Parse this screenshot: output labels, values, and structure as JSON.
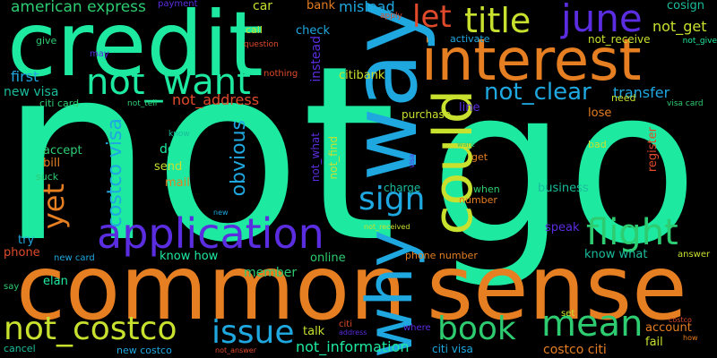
{
  "palette": {
    "mint": "#1de9a0",
    "orange": "#e67e22",
    "sky": "#1fa8e0",
    "lime": "#c8e02e",
    "violet": "#5b2de0",
    "red": "#e04a2b",
    "green": "#2ecc71",
    "teal": "#1abc9c"
  },
  "words": [
    {
      "text": "not",
      "color": "#1de9a0"
    },
    {
      "text": "go",
      "color": "#1de9a0"
    },
    {
      "text": "common",
      "color": "#e67e22"
    },
    {
      "text": "sense",
      "color": "#e67e22"
    },
    {
      "text": "credit",
      "color": "#1de9a0"
    },
    {
      "text": "interest",
      "color": "#e67e22"
    },
    {
      "text": "way",
      "color": "#1fa8e0"
    },
    {
      "text": "why",
      "color": "#1fa8e0"
    },
    {
      "text": "could",
      "color": "#c8e02e"
    },
    {
      "text": "application",
      "color": "#5b2de0"
    },
    {
      "text": "not_want",
      "color": "#1de9a0"
    },
    {
      "text": "june",
      "color": "#5b2de0"
    },
    {
      "text": "title",
      "color": "#c8e02e"
    },
    {
      "text": "let",
      "color": "#e04a2b"
    },
    {
      "text": "flight",
      "color": "#2ecc71"
    },
    {
      "text": "mean",
      "color": "#2ecc71"
    },
    {
      "text": "not_costco",
      "color": "#c8e02e"
    },
    {
      "text": "issue",
      "color": "#1fa8e0"
    },
    {
      "text": "book",
      "color": "#2ecc71"
    },
    {
      "text": "sign",
      "color": "#1fa8e0"
    },
    {
      "text": "not_clear",
      "color": "#1fa8e0"
    },
    {
      "text": "yet",
      "color": "#e67e22"
    },
    {
      "text": "costco visa",
      "color": "#1fa8e0"
    },
    {
      "text": "obvious",
      "color": "#1fa8e0"
    },
    {
      "text": "american express",
      "color": "#2ecc71"
    },
    {
      "text": "not_get",
      "color": "#c8e02e"
    },
    {
      "text": "cosign",
      "color": "#1abc9c"
    },
    {
      "text": "transfer",
      "color": "#1fa8e0"
    },
    {
      "text": "not_address",
      "color": "#e04a2b"
    },
    {
      "text": "first",
      "color": "#1fa8e0"
    },
    {
      "text": "new visa",
      "color": "#1abc9c"
    },
    {
      "text": "citi card",
      "color": "#2ecc71"
    },
    {
      "text": "not_receive",
      "color": "#c8e02e"
    },
    {
      "text": "citibank",
      "color": "#c8e02e"
    },
    {
      "text": "mislead",
      "color": "#1fa8e0"
    },
    {
      "text": "bank",
      "color": "#e67e22"
    },
    {
      "text": "car",
      "color": "#c8e02e"
    },
    {
      "text": "payment",
      "color": "#5b2de0"
    },
    {
      "text": "apply",
      "color": "#e04a2b"
    },
    {
      "text": "check",
      "color": "#1fa8e0"
    },
    {
      "text": "instead",
      "color": "#5b2de0"
    },
    {
      "text": "call",
      "color": "#c8e02e"
    },
    {
      "text": "question",
      "color": "#e04a2b"
    },
    {
      "text": "nothing",
      "color": "#e04a2b"
    },
    {
      "text": "give",
      "color": "#2ecc71"
    },
    {
      "text": "may",
      "color": "#5b2de0"
    },
    {
      "text": "activate",
      "color": "#1fa8e0"
    },
    {
      "text": "need",
      "color": "#c8e02e"
    },
    {
      "text": "visa card",
      "color": "#2ecc71"
    },
    {
      "text": "not_give",
      "color": "#1de9a0"
    },
    {
      "text": "not_tell",
      "color": "#2ecc71"
    },
    {
      "text": "line",
      "color": "#5b2de0"
    },
    {
      "text": "purchase",
      "color": "#c8e02e"
    },
    {
      "text": "lose",
      "color": "#e67e22"
    },
    {
      "text": "deny",
      "color": "#1de9a0"
    },
    {
      "text": "send",
      "color": "#c8e02e"
    },
    {
      "text": "mail",
      "color": "#e67e22"
    },
    {
      "text": "accept",
      "color": "#2ecc71"
    },
    {
      "text": "bill",
      "color": "#e67e22"
    },
    {
      "text": "know",
      "color": "#1abc9c"
    },
    {
      "text": "suck",
      "color": "#2ecc71"
    },
    {
      "text": "not_what",
      "color": "#5b2de0"
    },
    {
      "text": "not_find",
      "color": "#c8e02e"
    },
    {
      "text": "charge",
      "color": "#1abc9c"
    },
    {
      "text": "business",
      "color": "#1abc9c"
    },
    {
      "text": "register",
      "color": "#e04a2b"
    },
    {
      "text": "bad",
      "color": "#c8e02e"
    },
    {
      "text": "want",
      "color": "#2ecc71"
    },
    {
      "text": "get",
      "color": "#e67e22"
    },
    {
      "text": "visa",
      "color": "#5b2de0"
    },
    {
      "text": "when",
      "color": "#2ecc71"
    },
    {
      "text": "number",
      "color": "#e67e22"
    },
    {
      "text": "speak",
      "color": "#5b2de0"
    },
    {
      "text": "new",
      "color": "#1fa8e0"
    },
    {
      "text": "try",
      "color": "#1fa8e0"
    },
    {
      "text": "phone",
      "color": "#e04a2b"
    },
    {
      "text": "new card",
      "color": "#1fa8e0"
    },
    {
      "text": "know how",
      "color": "#1de9a0"
    },
    {
      "text": "member",
      "color": "#2ecc71"
    },
    {
      "text": "online",
      "color": "#2ecc71"
    },
    {
      "text": "not_received",
      "color": "#c8e02e"
    },
    {
      "text": "phone number",
      "color": "#e67e22"
    },
    {
      "text": "know what",
      "color": "#1abc9c"
    },
    {
      "text": "answer",
      "color": "#c8e02e"
    },
    {
      "text": "elan",
      "color": "#1de9a0"
    },
    {
      "text": "say",
      "color": "#2ecc71"
    },
    {
      "text": "talk",
      "color": "#c8e02e"
    },
    {
      "text": "not_information",
      "color": "#1de9a0"
    },
    {
      "text": "citi",
      "color": "#e04a2b"
    },
    {
      "text": "address",
      "color": "#5b2de0"
    },
    {
      "text": "where",
      "color": "#5b2de0"
    },
    {
      "text": "citi visa",
      "color": "#1fa8e0"
    },
    {
      "text": "costco citi",
      "color": "#e67e22"
    },
    {
      "text": "fail",
      "color": "#c8e02e"
    },
    {
      "text": "account",
      "color": "#e67e22"
    },
    {
      "text": "set",
      "color": "#c8e02e"
    },
    {
      "text": "costco",
      "color": "#e04a2b"
    },
    {
      "text": "how",
      "color": "#e67e22"
    },
    {
      "text": "new costco",
      "color": "#1fa8e0"
    },
    {
      "text": "not_answer",
      "color": "#e04a2b"
    },
    {
      "text": "cancel",
      "color": "#1abc9c"
    }
  ]
}
